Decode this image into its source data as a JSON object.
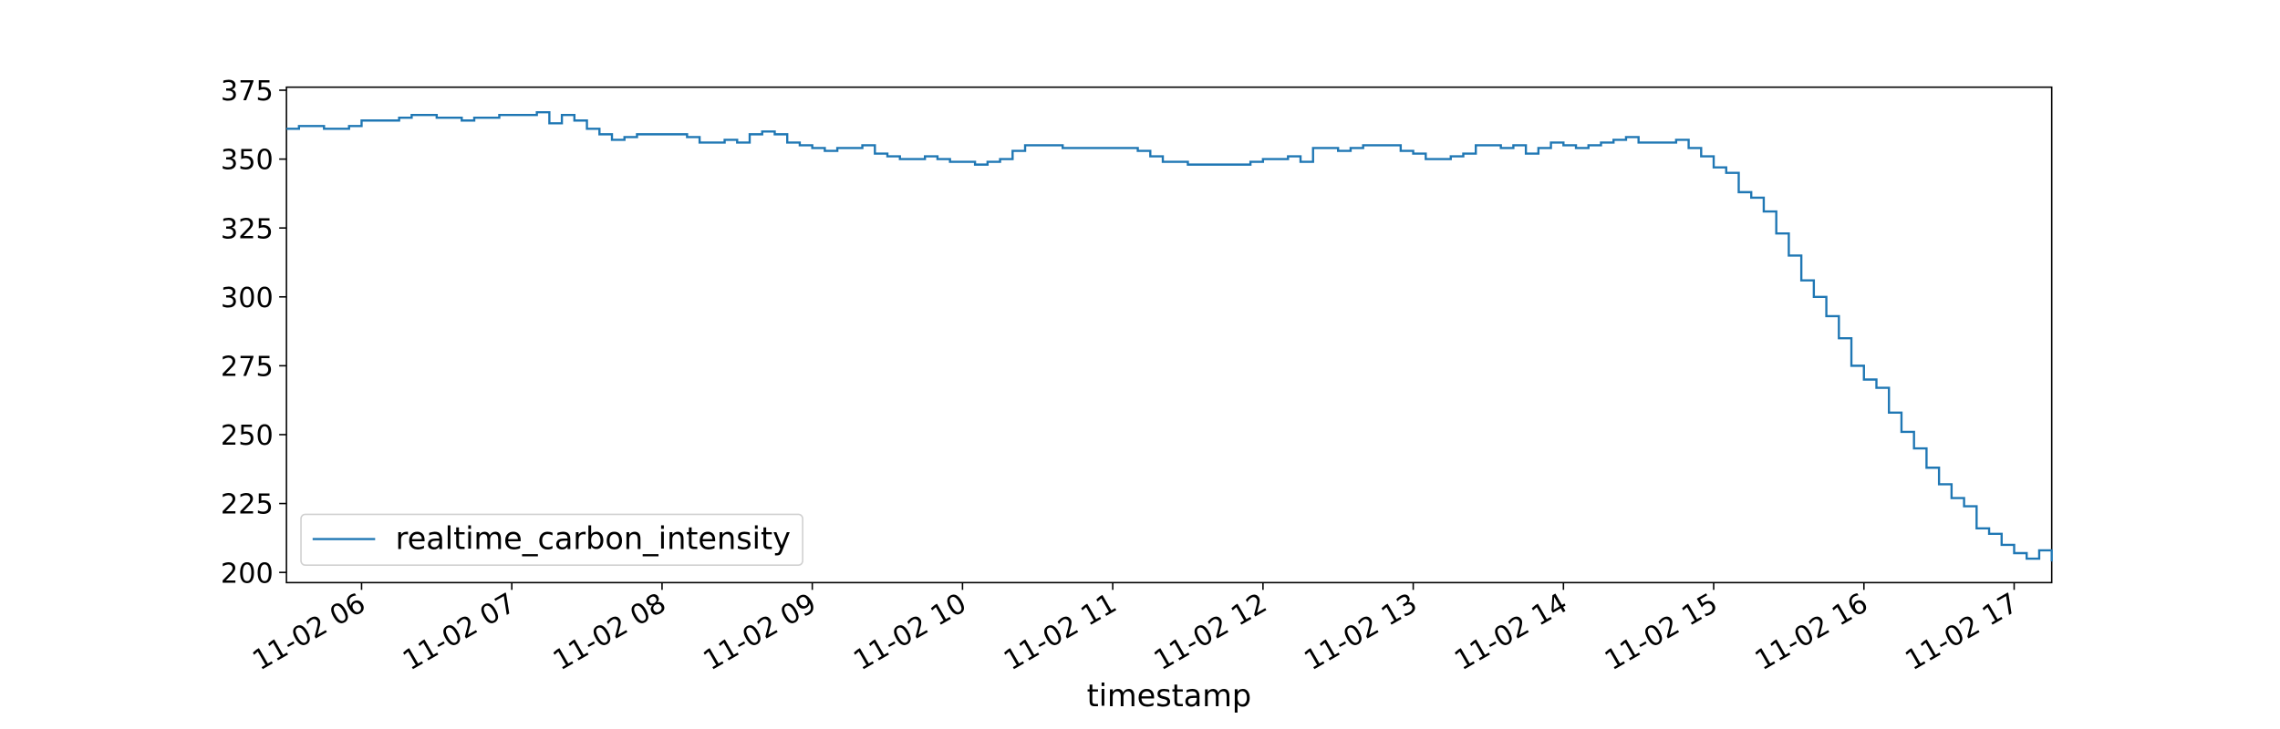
{
  "chart_data": {
    "type": "step-line",
    "xlabel": "timestamp",
    "x": [
      330,
      335,
      340,
      345,
      350,
      355,
      360,
      365,
      370,
      375,
      380,
      385,
      390,
      395,
      400,
      405,
      410,
      415,
      420,
      425,
      430,
      435,
      440,
      445,
      450,
      455,
      460,
      465,
      470,
      475,
      480,
      485,
      490,
      495,
      500,
      505,
      510,
      515,
      520,
      525,
      530,
      535,
      540,
      545,
      550,
      555,
      560,
      565,
      570,
      575,
      580,
      585,
      590,
      595,
      600,
      605,
      610,
      615,
      620,
      625,
      630,
      635,
      640,
      645,
      650,
      655,
      660,
      665,
      670,
      675,
      680,
      685,
      690,
      695,
      700,
      705,
      710,
      715,
      720,
      725,
      730,
      735,
      740,
      745,
      750,
      755,
      760,
      765,
      770,
      775,
      780,
      785,
      790,
      795,
      800,
      805,
      810,
      815,
      820,
      825,
      830,
      835,
      840,
      845,
      850,
      855,
      860,
      865,
      870,
      875,
      880,
      885,
      890,
      895,
      900,
      905,
      910,
      915,
      920,
      925,
      930,
      935,
      940,
      945,
      950,
      955,
      960,
      965,
      970,
      975,
      980,
      985,
      990,
      995,
      1000,
      1005,
      1010,
      1015,
      1020,
      1025,
      1030,
      1035
    ],
    "series": [
      {
        "name": "realtime_carbon_intensity",
        "color": "#1f77b4",
        "values": [
          361,
          362,
          362,
          361,
          361,
          362,
          364,
          364,
          364,
          365,
          366,
          366,
          365,
          365,
          364,
          365,
          365,
          366,
          366,
          366,
          367,
          363,
          366,
          364,
          361,
          359,
          357,
          358,
          359,
          359,
          359,
          359,
          358,
          356,
          356,
          357,
          356,
          359,
          360,
          359,
          356,
          355,
          354,
          353,
          354,
          354,
          355,
          352,
          351,
          350,
          350,
          351,
          350,
          349,
          349,
          348,
          349,
          350,
          353,
          355,
          355,
          355,
          354,
          354,
          354,
          354,
          354,
          354,
          353,
          351,
          349,
          349,
          348,
          348,
          348,
          348,
          348,
          349,
          350,
          350,
          351,
          349,
          354,
          354,
          353,
          354,
          355,
          355,
          355,
          353,
          352,
          350,
          350,
          351,
          352,
          355,
          355,
          354,
          355,
          352,
          354,
          356,
          355,
          354,
          355,
          356,
          357,
          358,
          356,
          356,
          356,
          357,
          354,
          351,
          347,
          345,
          338,
          336,
          331,
          323,
          315,
          306,
          300,
          293,
          285,
          275,
          270,
          267,
          258,
          251,
          245,
          238,
          232,
          227,
          224,
          216,
          214,
          210,
          207,
          205,
          208,
          204
        ]
      }
    ],
    "xlim": [
      330,
      1035
    ],
    "xticks": [
      {
        "value": 360,
        "label": "11-02 06"
      },
      {
        "value": 420,
        "label": "11-02 07"
      },
      {
        "value": 480,
        "label": "11-02 08"
      },
      {
        "value": 540,
        "label": "11-02 09"
      },
      {
        "value": 600,
        "label": "11-02 10"
      },
      {
        "value": 660,
        "label": "11-02 11"
      },
      {
        "value": 720,
        "label": "11-02 12"
      },
      {
        "value": 780,
        "label": "11-02 13"
      },
      {
        "value": 840,
        "label": "11-02 14"
      },
      {
        "value": 900,
        "label": "11-02 15"
      },
      {
        "value": 960,
        "label": "11-02 16"
      },
      {
        "value": 1020,
        "label": "11-02 17"
      }
    ],
    "ylim": [
      196.3,
      376.1
    ],
    "yticks": [
      200,
      225,
      250,
      275,
      300,
      325,
      350,
      375
    ],
    "legend": "lower left"
  }
}
